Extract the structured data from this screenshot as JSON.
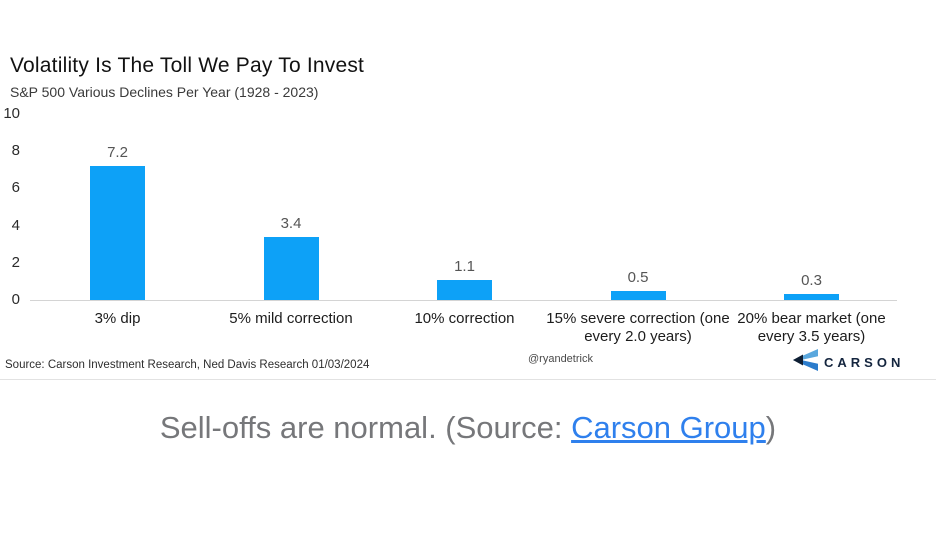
{
  "figure": {
    "title": "Volatility Is The Toll We Pay To Invest",
    "subtitle": "S&P 500 Various Declines Per Year (1928 - 2023)",
    "source_note": "Source: Carson Investment Research, Ned Davis Research 01/03/2024",
    "handle": "@ryandetrick",
    "logo_text": "CARSON"
  },
  "chart_data": {
    "type": "bar",
    "title": "Volatility Is The Toll We Pay To Invest",
    "subtitle": "S&P 500 Various Declines Per Year (1928 - 2023)",
    "categories": [
      "3% dip",
      "5% mild correction",
      "10% correction",
      "15% severe correction (one every 2.0 years)",
      "20% bear market (one every 3.5 years)"
    ],
    "values": [
      7.2,
      3.4,
      1.1,
      0.5,
      0.3
    ],
    "value_labels": [
      "7.2",
      "3.4",
      "1.1",
      "0.5",
      "0.3"
    ],
    "xlabel": "",
    "ylabel": "",
    "ylim": [
      0,
      10
    ],
    "yticks": [
      0,
      2,
      4,
      6,
      8,
      10
    ],
    "bar_color": "#0da1f7",
    "grid": false,
    "legend": false
  },
  "caption": {
    "text_before": "Sell-offs are normal. (Source: ",
    "link_text": "Carson Group",
    "text_after": ")",
    "text_color": "#76777a",
    "link_color": "#2f80ed"
  }
}
